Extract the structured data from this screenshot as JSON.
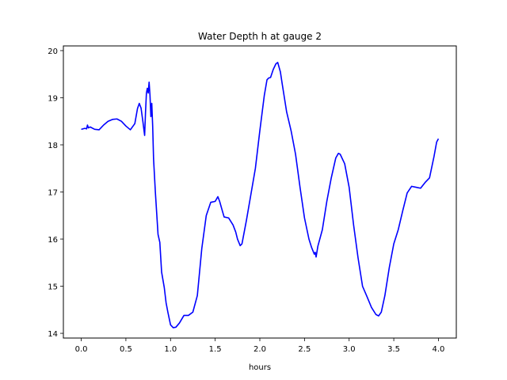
{
  "chart_data": {
    "type": "line",
    "title": "Water Depth h at gauge 2",
    "xlabel": "hours",
    "ylabel": "",
    "xlim": [
      -0.2,
      4.2
    ],
    "ylim": [
      13.9,
      20.1
    ],
    "xticks": [
      0.0,
      0.5,
      1.0,
      1.5,
      2.0,
      2.5,
      3.0,
      3.5,
      4.0
    ],
    "xtick_labels": [
      "0.0",
      "0.5",
      "1.0",
      "1.5",
      "2.0",
      "2.5",
      "3.0",
      "3.5",
      "4.0"
    ],
    "yticks": [
      14,
      15,
      16,
      17,
      18,
      19,
      20
    ],
    "ytick_labels": [
      "14",
      "15",
      "16",
      "17",
      "18",
      "19",
      "20"
    ],
    "grid": false,
    "series": [
      {
        "color": "#0000ff",
        "x": [
          0.0,
          0.04,
          0.06,
          0.07,
          0.08,
          0.1,
          0.15,
          0.2,
          0.25,
          0.3,
          0.35,
          0.4,
          0.45,
          0.5,
          0.55,
          0.6,
          0.63,
          0.65,
          0.67,
          0.69,
          0.71,
          0.72,
          0.73,
          0.74,
          0.75,
          0.76,
          0.77,
          0.78,
          0.79,
          0.8,
          0.81,
          0.83,
          0.86,
          0.88,
          0.9,
          0.93,
          0.95,
          0.97,
          1.0,
          1.03,
          1.06,
          1.1,
          1.15,
          1.2,
          1.25,
          1.3,
          1.35,
          1.4,
          1.45,
          1.5,
          1.53,
          1.55,
          1.58,
          1.6,
          1.65,
          1.7,
          1.73,
          1.75,
          1.78,
          1.8,
          1.82,
          1.85,
          1.9,
          1.95,
          2.0,
          2.05,
          2.08,
          2.1,
          2.12,
          2.15,
          2.18,
          2.2,
          2.23,
          2.25,
          2.3,
          2.35,
          2.4,
          2.45,
          2.5,
          2.55,
          2.58,
          2.61,
          2.62,
          2.63,
          2.65,
          2.7,
          2.75,
          2.8,
          2.85,
          2.88,
          2.9,
          2.95,
          3.0,
          3.05,
          3.1,
          3.15,
          3.2,
          3.25,
          3.3,
          3.33,
          3.36,
          3.4,
          3.45,
          3.5,
          3.55,
          3.6,
          3.65,
          3.7,
          3.75,
          3.8,
          3.85,
          3.9,
          3.95,
          3.98,
          4.0
        ],
        "y": [
          18.33,
          18.35,
          18.34,
          18.42,
          18.36,
          18.38,
          18.33,
          18.32,
          18.42,
          18.5,
          18.54,
          18.55,
          18.5,
          18.4,
          18.32,
          18.45,
          18.77,
          18.88,
          18.78,
          18.5,
          18.2,
          18.7,
          19.1,
          19.2,
          19.1,
          19.33,
          19.05,
          18.6,
          18.88,
          18.4,
          17.7,
          17.0,
          16.1,
          15.93,
          15.3,
          14.97,
          14.65,
          14.45,
          14.18,
          14.12,
          14.13,
          14.22,
          14.38,
          14.38,
          14.45,
          14.8,
          15.8,
          16.5,
          16.78,
          16.8,
          16.9,
          16.8,
          16.6,
          16.47,
          16.45,
          16.3,
          16.15,
          16.0,
          15.86,
          15.9,
          16.1,
          16.4,
          16.95,
          17.5,
          18.3,
          19.05,
          19.38,
          19.42,
          19.43,
          19.6,
          19.72,
          19.75,
          19.55,
          19.3,
          18.7,
          18.3,
          17.8,
          17.1,
          16.45,
          16.0,
          15.82,
          15.68,
          15.72,
          15.62,
          15.85,
          16.2,
          16.8,
          17.3,
          17.72,
          17.82,
          17.8,
          17.6,
          17.1,
          16.3,
          15.6,
          15.0,
          14.78,
          14.55,
          14.4,
          14.37,
          14.45,
          14.8,
          15.4,
          15.9,
          16.2,
          16.6,
          16.98,
          17.12,
          17.1,
          17.08,
          17.2,
          17.3,
          17.75,
          18.06,
          18.13
        ]
      }
    ]
  }
}
